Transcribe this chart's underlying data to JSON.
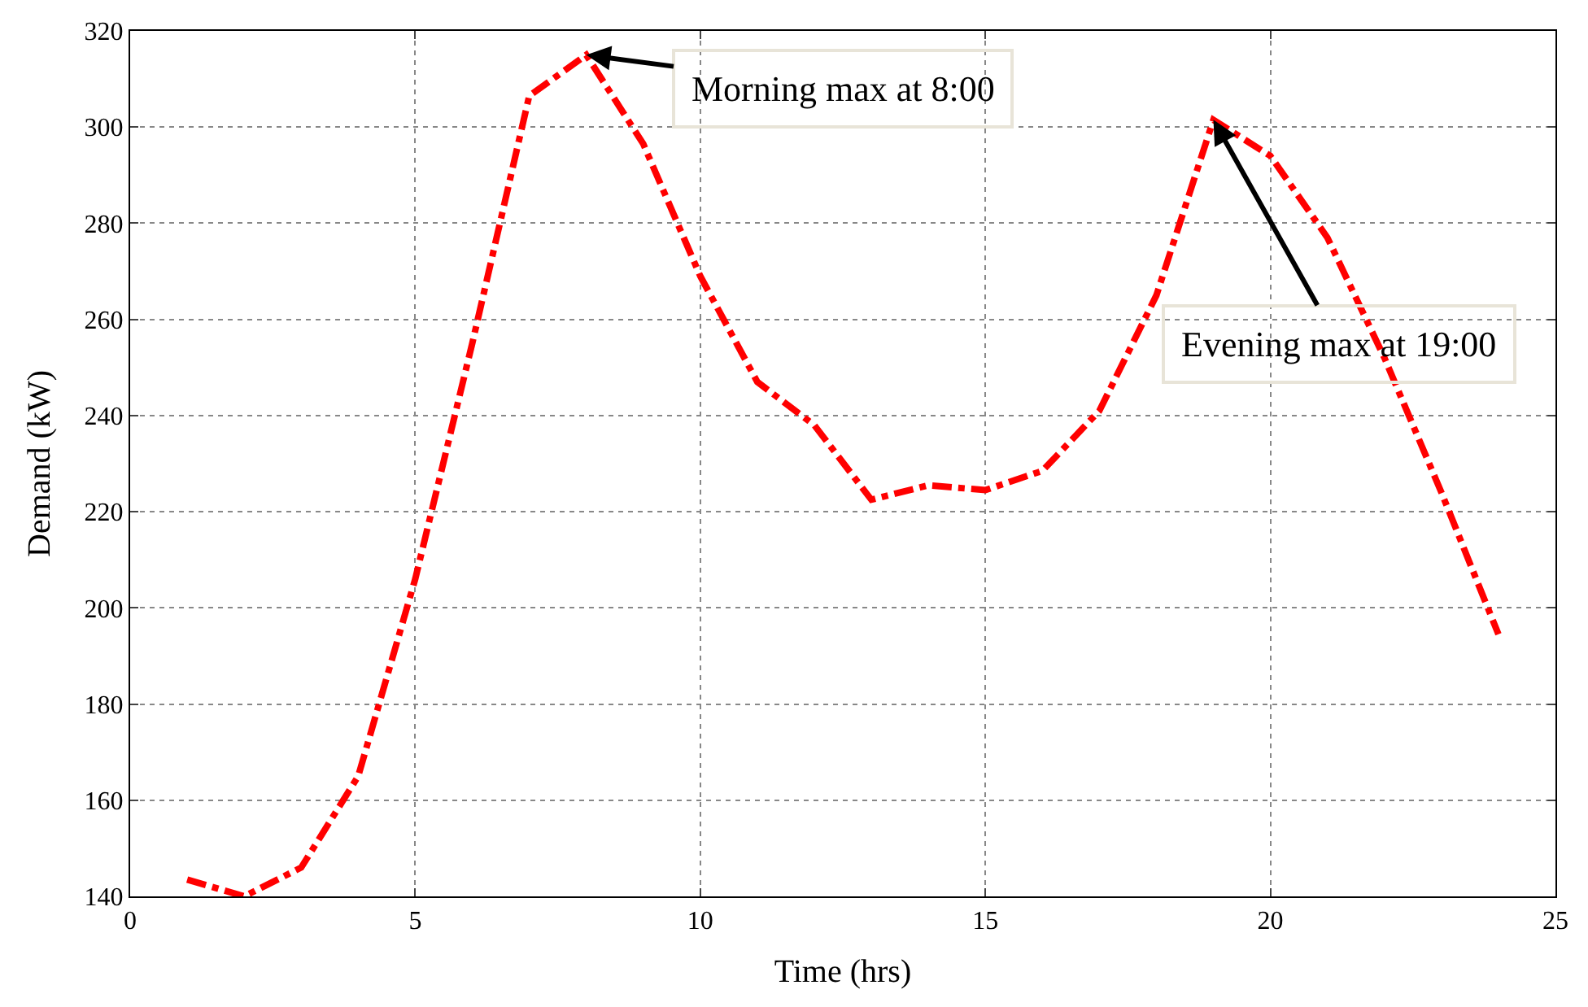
{
  "chart_data": {
    "type": "line",
    "xlabel": "Time (hrs)",
    "ylabel": "Demand (kW)",
    "x": [
      1,
      2,
      3,
      4,
      5,
      6,
      7,
      8,
      9,
      10,
      11,
      12,
      13,
      14,
      15,
      16,
      17,
      18,
      19,
      20,
      21,
      22,
      23,
      24
    ],
    "series": [
      {
        "color": "#ff0000",
        "values": [
          143.5,
          140,
          146,
          165,
          206,
          255,
          306.5,
          315,
          296.5,
          269,
          247,
          238,
          222.5,
          225.5,
          224.5,
          228.5,
          241,
          265,
          301.5,
          294,
          277,
          252,
          224,
          194.5
        ]
      }
    ],
    "xlim": [
      0,
      25
    ],
    "ylim": [
      140,
      320
    ],
    "xticks": [
      0,
      5,
      10,
      15,
      20,
      25
    ],
    "yticks": [
      140,
      160,
      180,
      200,
      220,
      240,
      260,
      280,
      300,
      320
    ],
    "grid": true,
    "marker": "none",
    "line_style": "dashdot",
    "annotations": [
      {
        "text": "Morning max at 8:00",
        "x": 8,
        "y": 315
      },
      {
        "text": "Evening max at 19:00",
        "x": 19,
        "y": 301.5
      }
    ]
  }
}
